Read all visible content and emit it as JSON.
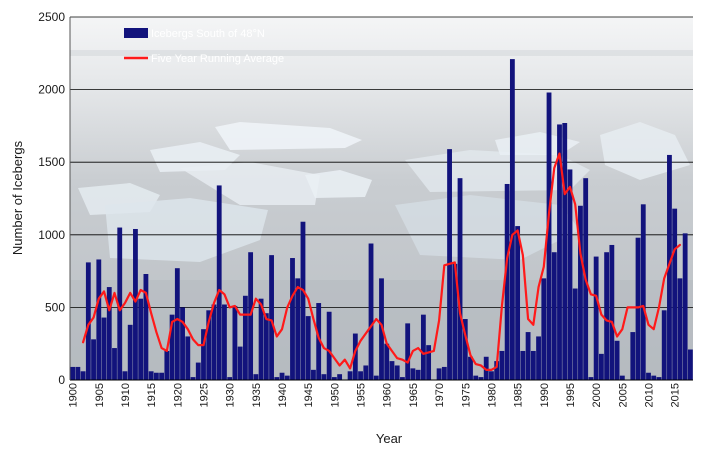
{
  "chart_data": {
    "type": "bar",
    "title": "",
    "xlabel": "Year",
    "ylabel": "Number of Icebergs",
    "ylim": [
      0,
      2500
    ],
    "yticks": [
      0,
      500,
      1000,
      1500,
      2000,
      2500
    ],
    "xlim": [
      1900,
      2019
    ],
    "xticks": [
      1900,
      1905,
      1910,
      1915,
      1920,
      1925,
      1930,
      1935,
      1940,
      1945,
      1950,
      1955,
      1960,
      1965,
      1970,
      1975,
      1980,
      1985,
      1990,
      1995,
      2000,
      2005,
      2010,
      2015
    ],
    "grid": true,
    "legend_position": "top-left",
    "colors": {
      "bars": "#12137c",
      "line": "#ff1a1a",
      "grid": "#000000"
    },
    "series": [
      {
        "name": "Icebergs South of 48°N",
        "type": "bar",
        "x": [
          1900,
          1901,
          1902,
          1903,
          1904,
          1905,
          1906,
          1907,
          1908,
          1909,
          1910,
          1911,
          1912,
          1913,
          1914,
          1915,
          1916,
          1917,
          1918,
          1919,
          1920,
          1921,
          1922,
          1923,
          1924,
          1925,
          1926,
          1927,
          1928,
          1929,
          1930,
          1931,
          1932,
          1933,
          1934,
          1935,
          1936,
          1937,
          1938,
          1939,
          1940,
          1941,
          1942,
          1943,
          1944,
          1945,
          1946,
          1947,
          1948,
          1949,
          1950,
          1951,
          1952,
          1953,
          1954,
          1955,
          1956,
          1957,
          1958,
          1959,
          1960,
          1961,
          1962,
          1963,
          1964,
          1965,
          1966,
          1967,
          1968,
          1969,
          1970,
          1971,
          1972,
          1973,
          1974,
          1975,
          1976,
          1977,
          1978,
          1979,
          1980,
          1981,
          1982,
          1983,
          1984,
          1985,
          1986,
          1987,
          1988,
          1989,
          1990,
          1991,
          1992,
          1993,
          1994,
          1995,
          1996,
          1997,
          1998,
          1999,
          2000,
          2001,
          2002,
          2003,
          2004,
          2005,
          2006,
          2007,
          2008,
          2009,
          2010,
          2011,
          2012,
          2013,
          2014,
          2015,
          2016,
          2017,
          2018
        ],
        "values": [
          90,
          90,
          60,
          810,
          280,
          830,
          430,
          640,
          220,
          1050,
          60,
          380,
          1040,
          560,
          730,
          60,
          50,
          50,
          200,
          450,
          770,
          500,
          300,
          20,
          120,
          350,
          480,
          520,
          1340,
          520,
          20,
          510,
          230,
          580,
          880,
          40,
          560,
          460,
          860,
          20,
          50,
          30,
          840,
          700,
          1090,
          440,
          70,
          530,
          40,
          470,
          20,
          40,
          0,
          60,
          320,
          60,
          100,
          940,
          30,
          700,
          250,
          130,
          100,
          20,
          390,
          80,
          70,
          450,
          240,
          0,
          80,
          90,
          1590,
          800,
          1390,
          420,
          160,
          30,
          20,
          160,
          60,
          130,
          200,
          1350,
          2210,
          1060,
          200,
          330,
          200,
          300,
          700,
          1980,
          880,
          1760,
          1770,
          1450,
          630,
          1200,
          1390,
          20,
          850,
          180,
          880,
          930,
          270,
          30,
          0,
          330,
          980,
          1210,
          50,
          30,
          20,
          480,
          1550,
          1180,
          700,
          1010,
          210
        ]
      },
      {
        "name": "Five Year Running Average",
        "type": "line",
        "x": [
          1902,
          1903,
          1904,
          1905,
          1906,
          1907,
          1908,
          1909,
          1910,
          1911,
          1912,
          1913,
          1914,
          1915,
          1916,
          1917,
          1918,
          1919,
          1920,
          1921,
          1922,
          1923,
          1924,
          1925,
          1926,
          1927,
          1928,
          1929,
          1930,
          1931,
          1932,
          1933,
          1934,
          1935,
          1936,
          1937,
          1938,
          1939,
          1940,
          1941,
          1942,
          1943,
          1944,
          1945,
          1946,
          1947,
          1948,
          1949,
          1950,
          1951,
          1952,
          1953,
          1954,
          1955,
          1956,
          1957,
          1958,
          1959,
          1960,
          1961,
          1962,
          1963,
          1964,
          1965,
          1966,
          1967,
          1968,
          1969,
          1970,
          1971,
          1972,
          1973,
          1974,
          1975,
          1976,
          1977,
          1978,
          1979,
          1980,
          1981,
          1982,
          1983,
          1984,
          1985,
          1986,
          1987,
          1988,
          1989,
          1990,
          1991,
          1992,
          1993,
          1994,
          1995,
          1996,
          1997,
          1998,
          1999,
          2000,
          2001,
          2002,
          2003,
          2004,
          2005,
          2006,
          2007,
          2008,
          2009,
          2010,
          2011,
          2012,
          2013,
          2014,
          2015,
          2016
        ],
        "values": [
          260,
          380,
          430,
          560,
          610,
          480,
          600,
          480,
          530,
          600,
          540,
          620,
          600,
          460,
          330,
          220,
          200,
          400,
          420,
          400,
          350,
          280,
          240,
          240,
          400,
          530,
          620,
          590,
          500,
          510,
          450,
          450,
          450,
          560,
          520,
          420,
          410,
          300,
          350,
          500,
          580,
          640,
          620,
          560,
          420,
          290,
          220,
          200,
          150,
          100,
          140,
          80,
          200,
          270,
          320,
          370,
          420,
          380,
          250,
          200,
          150,
          140,
          120,
          200,
          220,
          180,
          190,
          200,
          410,
          790,
          800,
          810,
          460,
          310,
          170,
          110,
          100,
          70,
          70,
          90,
          510,
          840,
          1000,
          1030,
          860,
          420,
          380,
          640,
          780,
          1150,
          1460,
          1560,
          1280,
          1330,
          1210,
          870,
          690,
          590,
          580,
          450,
          410,
          400,
          300,
          350,
          500,
          500,
          500,
          510,
          380,
          350,
          500,
          700,
          800,
          900,
          930
        ]
      }
    ]
  }
}
